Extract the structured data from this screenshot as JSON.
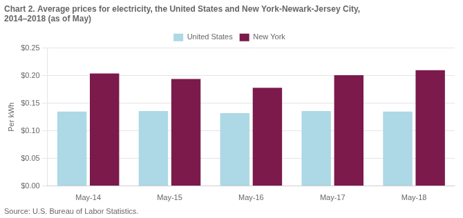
{
  "chart_data": {
    "type": "bar",
    "title": "Chart 2. Average prices for electricity, the United States and New York-Newark-Jersey City,\n2014–2018 (as of May)",
    "y_label": "Per kWh",
    "annotations": [
      "Source: U.S. Bureau of Labor Statistics."
    ],
    "categories": [
      "May-14",
      "May-15",
      "May-16",
      "May-17",
      "May-18"
    ],
    "series": [
      {
        "name": "United States",
        "color": "#add8e6",
        "values": [
          0.135,
          0.136,
          0.132,
          0.136,
          0.135
        ]
      },
      {
        "name": "New York",
        "color": "#7b1a4b",
        "values": [
          0.204,
          0.194,
          0.178,
          0.201,
          0.21
        ]
      }
    ],
    "ylim": [
      0,
      0.25
    ],
    "yticks": [
      {
        "value": 0.0,
        "label": "$0.00"
      },
      {
        "value": 0.05,
        "label": "$0.05"
      },
      {
        "value": 0.1,
        "label": "$0.10"
      },
      {
        "value": 0.15,
        "label": "$0.15"
      },
      {
        "value": 0.2,
        "label": "$0.20"
      },
      {
        "value": 0.25,
        "label": "$0.25"
      }
    ],
    "grid": true,
    "legend": "top"
  }
}
